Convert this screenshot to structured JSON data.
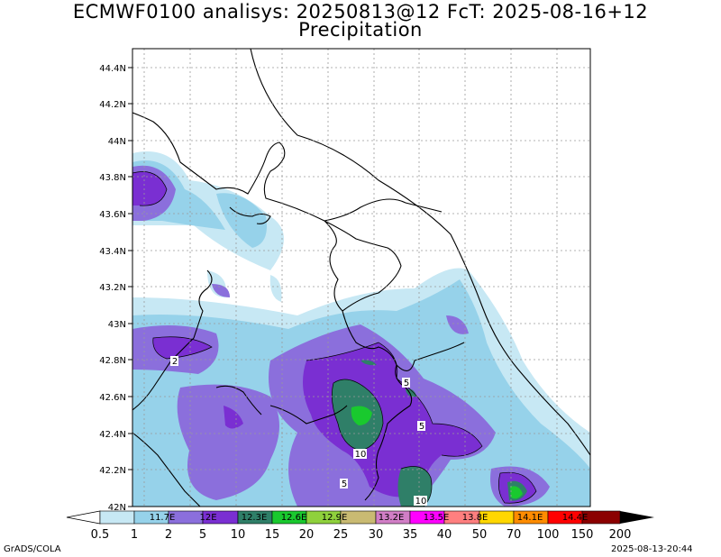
{
  "title": {
    "line1": "ECMWF0100 analisys: 20250813@12 FcT: 2025-08-16+12",
    "line2": "Precipitation"
  },
  "map": {
    "lat_ticks": [
      "44.4N",
      "44.2N",
      "44N",
      "43.8N",
      "43.6N",
      "43.4N",
      "43.2N",
      "43N",
      "42.8N",
      "42.6N",
      "42.4N",
      "42.2N",
      "42N"
    ],
    "lon_ticks": [
      "11.7E",
      "12E",
      "12.3E",
      "12.6E",
      "12.9E",
      "13.2E",
      "13.5E",
      "13.8E",
      "14.1E",
      "14.4E"
    ],
    "lat_range": [
      42.0,
      44.5
    ],
    "lon_range": [
      11.6,
      14.6
    ],
    "grid": true,
    "contour_labels": [
      "2",
      "5",
      "5",
      "5",
      "10",
      "10"
    ]
  },
  "colorbar": {
    "levels": [
      "0.5",
      "1",
      "2",
      "5",
      "10",
      "15",
      "20",
      "25",
      "30",
      "35",
      "40",
      "50",
      "70",
      "100",
      "150",
      "200"
    ],
    "colors": [
      "#ffffff",
      "#c7e8f4",
      "#96d2ea",
      "#8b6fdc",
      "#7a2fd2",
      "#2f7f68",
      "#19c92e",
      "#8fd13c",
      "#c9ba72",
      "#d17ec6",
      "#ff00ff",
      "#ff7f7f",
      "#ffd700",
      "#ff8c00",
      "#ff0000",
      "#8b0000"
    ]
  },
  "footer": {
    "left": "GrADS/COLA",
    "right": "2025-08-13-20:44"
  }
}
